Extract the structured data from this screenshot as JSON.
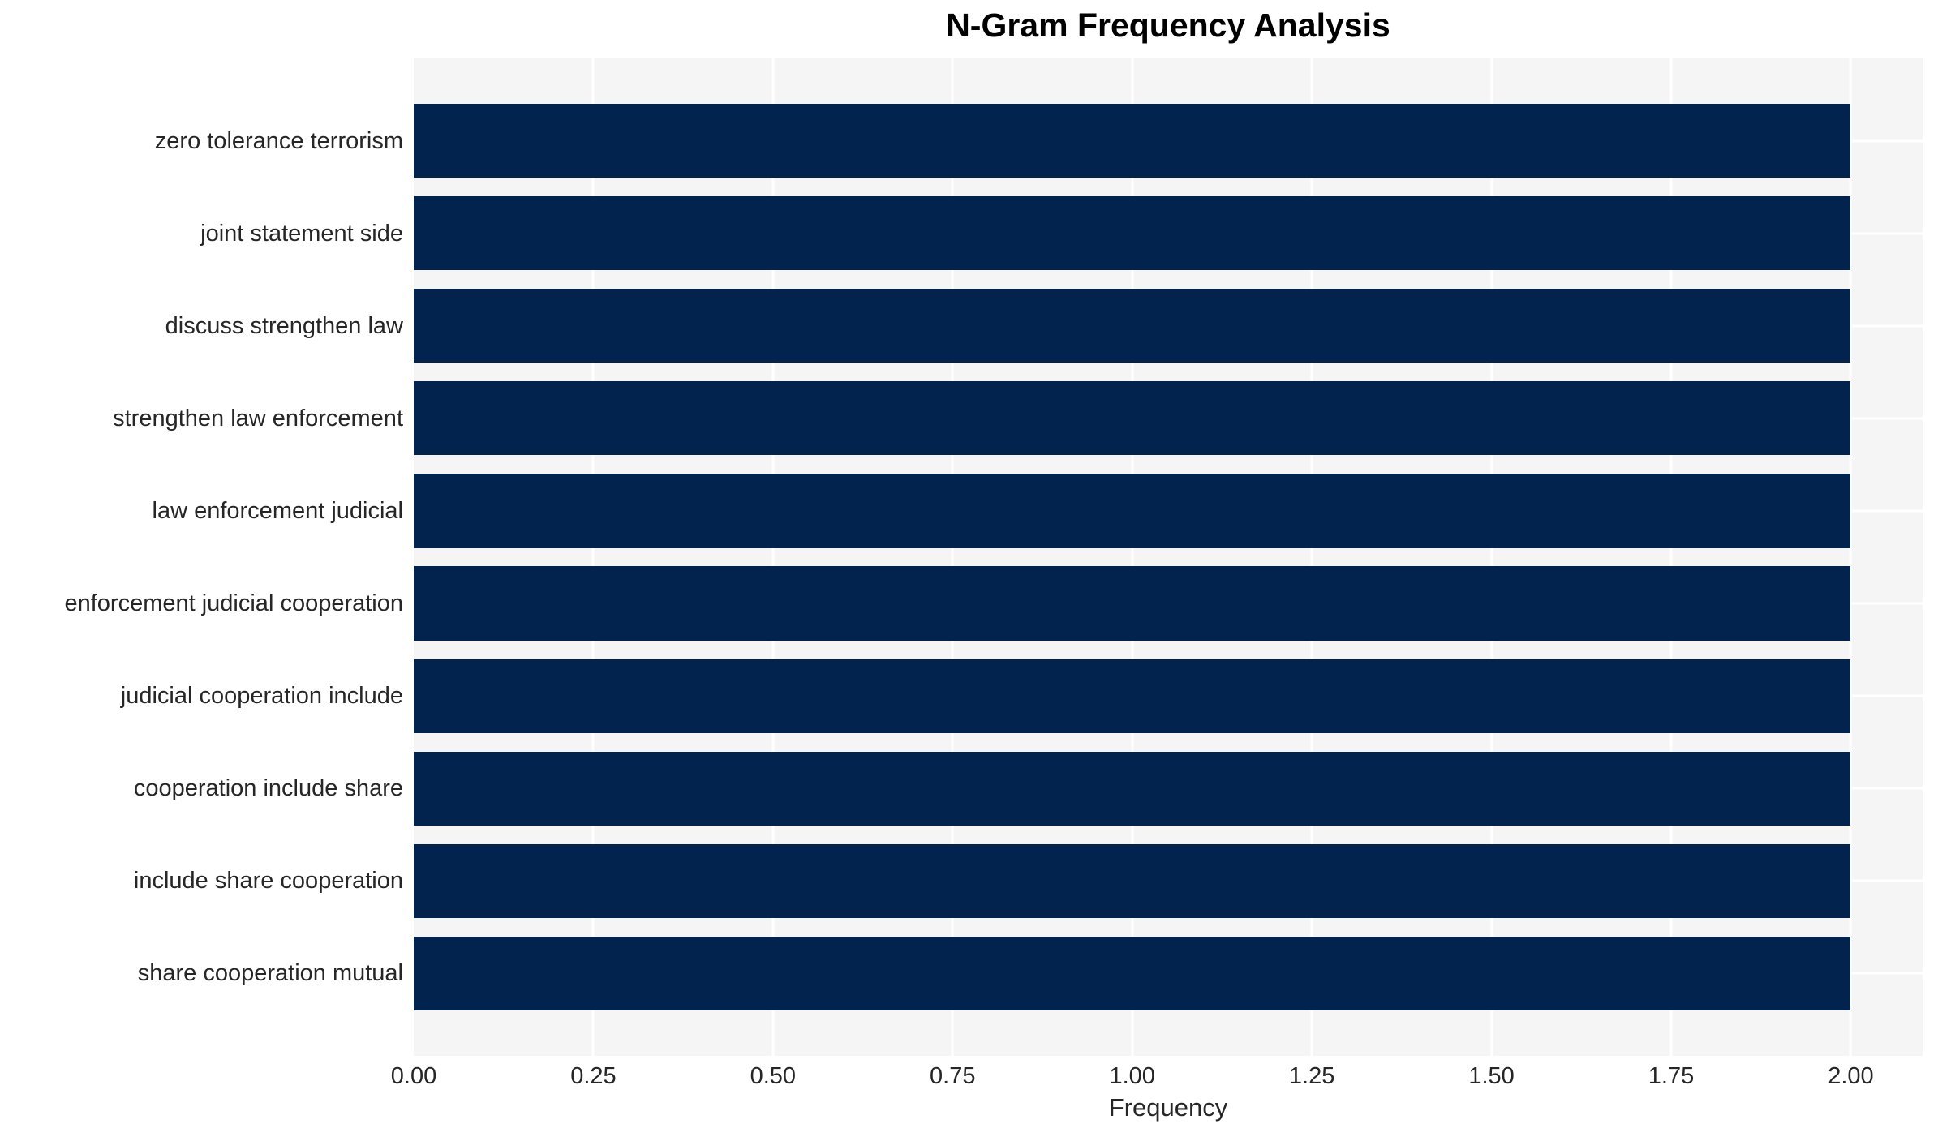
{
  "title": "N-Gram Frequency Analysis",
  "chart_data": {
    "type": "bar",
    "orientation": "horizontal",
    "title": "N-Gram Frequency Analysis",
    "xlabel": "Frequency",
    "ylabel": "",
    "categories": [
      "zero tolerance terrorism",
      "joint statement side",
      "discuss strengthen law",
      "strengthen law enforcement",
      "law enforcement judicial",
      "enforcement judicial cooperation",
      "judicial cooperation include",
      "cooperation include share",
      "include share cooperation",
      "share cooperation mutual"
    ],
    "values": [
      2,
      2,
      2,
      2,
      2,
      2,
      2,
      2,
      2,
      2
    ],
    "xlim": [
      0,
      2.1
    ],
    "xticks": [
      0.0,
      0.25,
      0.5,
      0.75,
      1.0,
      1.25,
      1.5,
      1.75,
      2.0
    ],
    "xtick_labels": [
      "0.00",
      "0.25",
      "0.50",
      "0.75",
      "1.00",
      "1.25",
      "1.50",
      "1.75",
      "2.00"
    ],
    "grid": true,
    "legend": null,
    "colors": {
      "bar": "#02234d",
      "plot_background": "#f5f5f6",
      "gridline": "#ffffff",
      "tick_text": "#262626",
      "title_text": "#000000"
    }
  }
}
